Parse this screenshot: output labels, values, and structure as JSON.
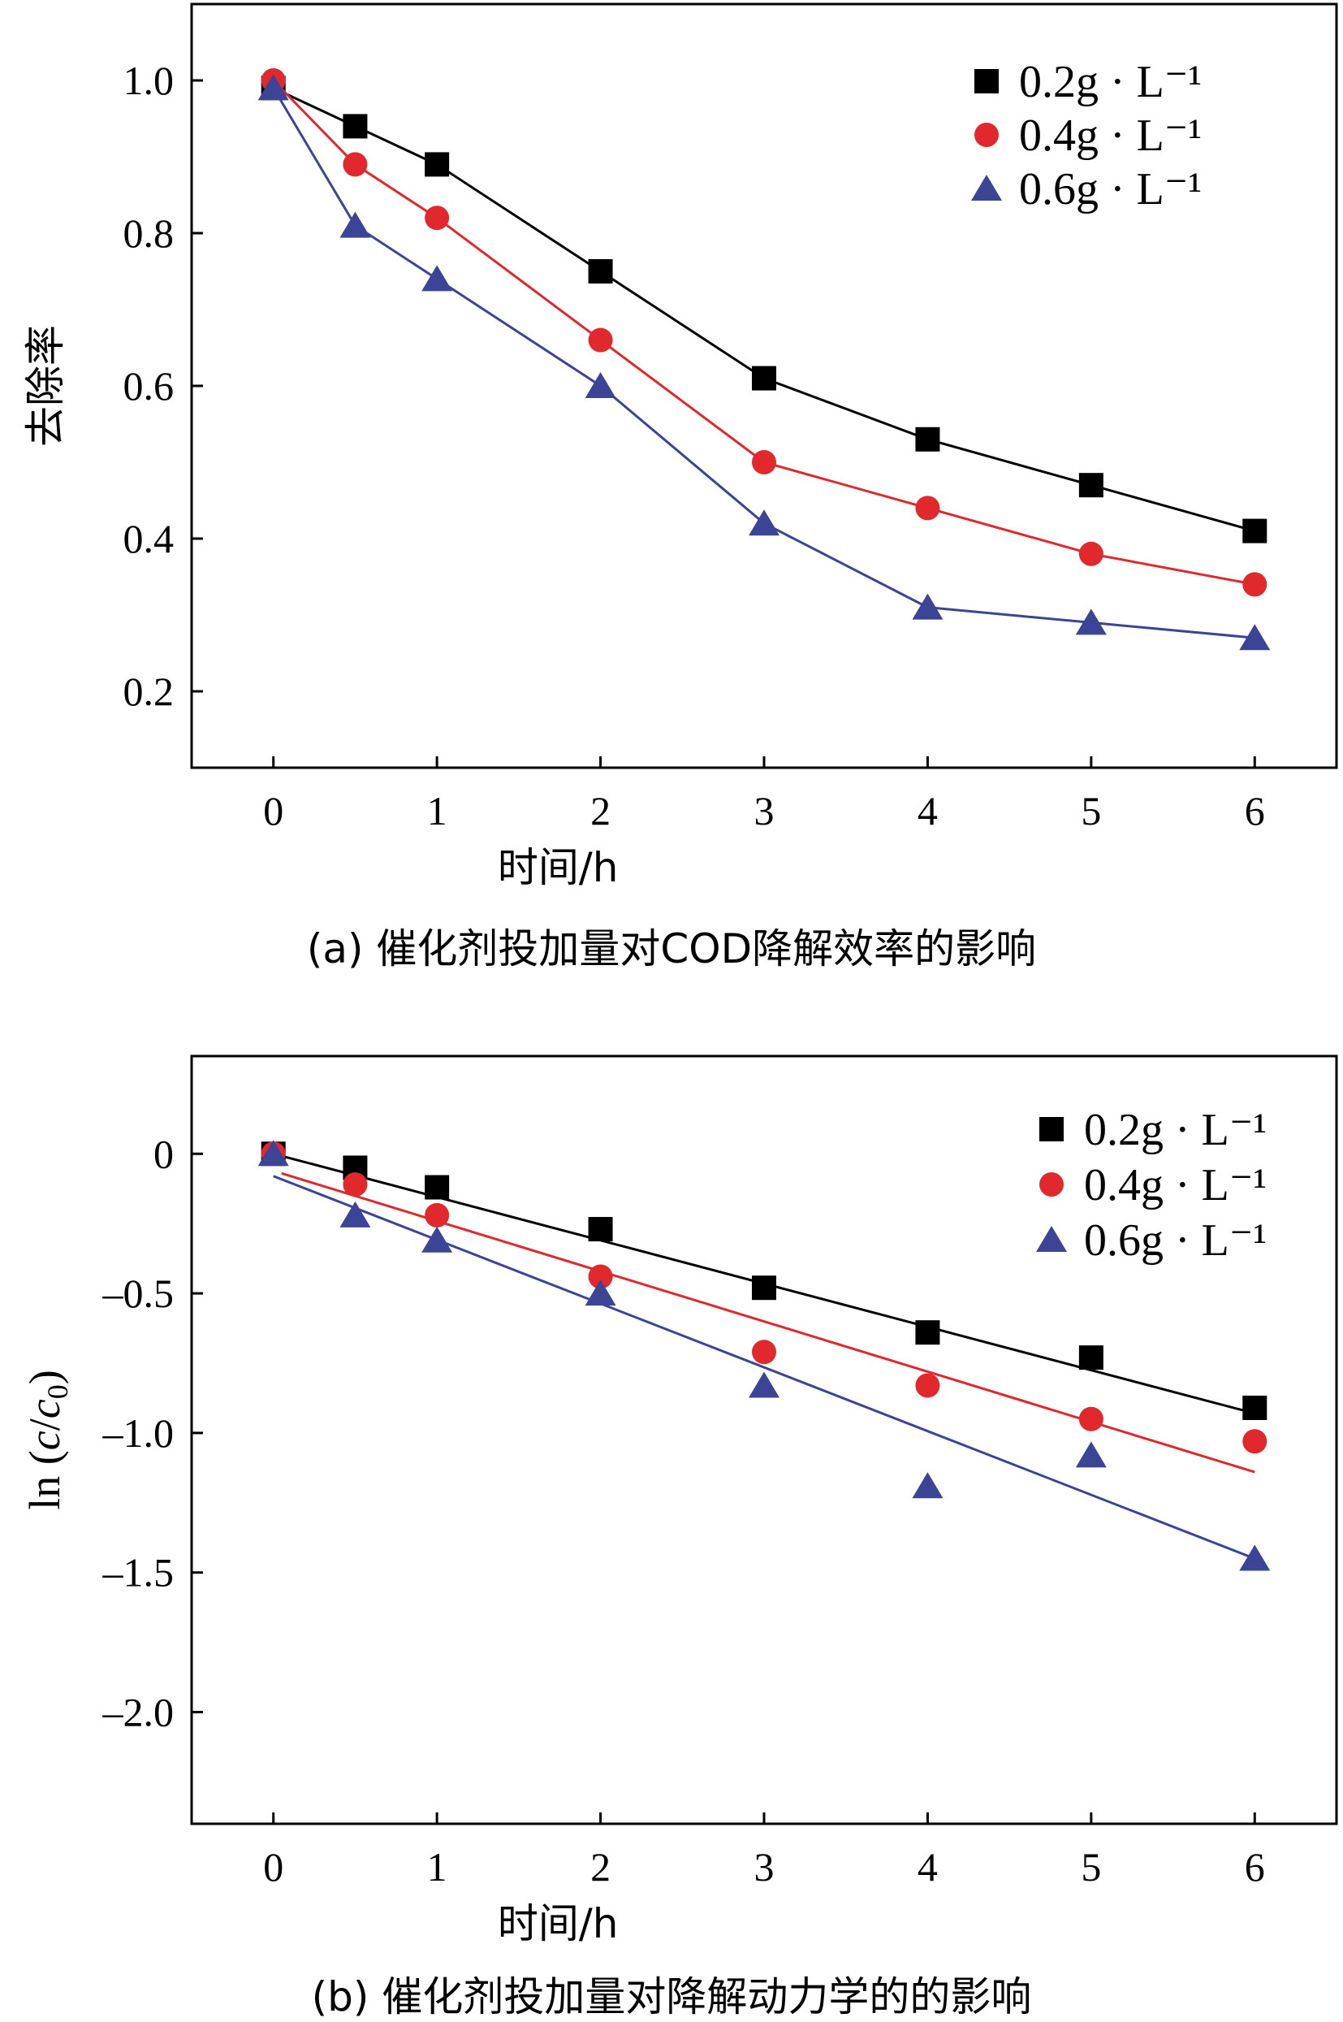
{
  "chart_data": [
    {
      "type": "line",
      "panel": "a",
      "caption": "(a) 催化剂投加量对COD降解效率的影响",
      "xlabel": "时间/h",
      "ylabel": "去除率",
      "xlim": [
        -0.5,
        6.5
      ],
      "ylim": [
        0.1,
        1.1
      ],
      "xticks": [
        "0",
        "1",
        "2",
        "3",
        "4",
        "5",
        "6"
      ],
      "yticks": [
        "0.2",
        "0.4",
        "0.6",
        "0.8",
        "1.0"
      ],
      "legend_position": "top-right",
      "grid": false,
      "x": [
        0,
        0.5,
        1,
        2,
        3,
        4,
        5,
        6
      ],
      "series": [
        {
          "name": "0.2g · L⁻¹",
          "color": "#000000",
          "marker": "square",
          "values": [
            0.99,
            0.94,
            0.89,
            0.75,
            0.61,
            0.53,
            0.47,
            0.41
          ]
        },
        {
          "name": "0.4g · L⁻¹",
          "color": "#e0282d",
          "marker": "circle",
          "values": [
            1.0,
            0.89,
            0.82,
            0.66,
            0.5,
            0.44,
            0.38,
            0.34
          ]
        },
        {
          "name": "0.6g · L⁻¹",
          "color": "#3c4496",
          "marker": "triangle",
          "values": [
            0.99,
            0.81,
            0.74,
            0.6,
            0.42,
            0.31,
            0.29,
            0.27
          ]
        }
      ]
    },
    {
      "type": "scatter",
      "panel": "b",
      "caption": "(b) 催化剂投加量对降解动力学的的影响",
      "xlabel": "时间/h",
      "ylabel": "ln (c/c0)",
      "xlim": [
        -0.5,
        6.5
      ],
      "ylim": [
        -2.4,
        0.35
      ],
      "xticks": [
        "0",
        "1",
        "2",
        "3",
        "4",
        "5",
        "6"
      ],
      "yticks": [
        "0",
        "-0.5",
        "-1.0",
        "-1.5",
        "-2.0"
      ],
      "legend_position": "top-right",
      "grid": false,
      "x": [
        0,
        0.5,
        1,
        2,
        3,
        4,
        5,
        6
      ],
      "series": [
        {
          "name": "0.2g · L⁻¹",
          "color": "#000000",
          "marker": "square",
          "values": [
            0.0,
            -0.05,
            -0.12,
            -0.27,
            -0.48,
            -0.64,
            -0.73,
            -0.91
          ],
          "fit": {
            "x": [
              0,
              6
            ],
            "y": [
              0.0,
              -0.93
            ]
          }
        },
        {
          "name": "0.4g · L⁻¹",
          "color": "#e0282d",
          "marker": "circle",
          "values": [
            0.0,
            -0.11,
            -0.22,
            -0.44,
            -0.71,
            -0.83,
            -0.95,
            -1.03
          ],
          "fit": {
            "x": [
              0.05,
              6
            ],
            "y": [
              -0.07,
              -1.14
            ]
          }
        },
        {
          "name": "0.6g · L⁻¹",
          "color": "#3c4496",
          "marker": "triangle",
          "values": [
            0.0,
            -0.22,
            -0.31,
            -0.5,
            -0.83,
            -1.19,
            -1.08,
            -1.45
          ],
          "fit": {
            "x": [
              0,
              6
            ],
            "y": [
              -0.08,
              -1.45
            ]
          }
        }
      ]
    }
  ]
}
